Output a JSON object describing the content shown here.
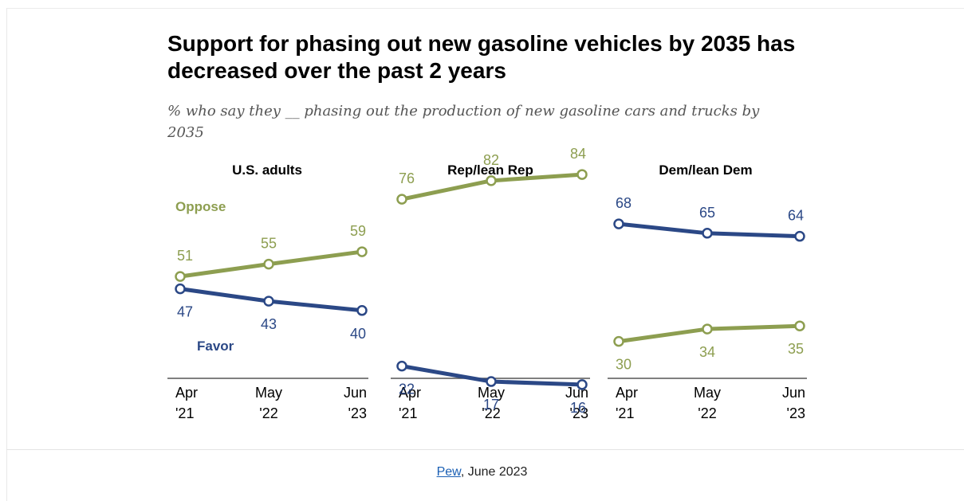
{
  "header": {
    "title": "Support for phasing out new gasoline vehicles by 2035 has decreased over the past 2 years",
    "subtitle": "% who say they __ phasing out the production of new gasoline cars and trucks by 2035"
  },
  "footer": {
    "source_link": "Pew",
    "source_rest": ", June 2023"
  },
  "colors": {
    "oppose": "#8d9e50",
    "favor": "#2b4886",
    "axis": "#555555",
    "text": "#000000"
  },
  "chart_data": {
    "type": "line",
    "x": [
      "Apr '21",
      "May '22",
      "Jun '23"
    ],
    "x_tick_lines": [
      [
        "Apr",
        "'21"
      ],
      [
        "May",
        "'22"
      ],
      [
        "Jun",
        "'23"
      ]
    ],
    "ylim": [
      0,
      100
    ],
    "grid": false,
    "panels": [
      {
        "title": "U.S. adults",
        "series": [
          {
            "name": "Oppose",
            "values": [
              51,
              55,
              59
            ],
            "color": "#8d9e50"
          },
          {
            "name": "Favor",
            "values": [
              47,
              43,
              40
            ],
            "color": "#2b4886"
          }
        ]
      },
      {
        "title": "Rep/lean Rep",
        "series": [
          {
            "values": [
              76,
              82,
              84
            ],
            "color": "#8d9e50"
          },
          {
            "values": [
              22,
              17,
              16
            ],
            "color": "#2b4886"
          }
        ]
      },
      {
        "title": "Dem/lean Dem",
        "series": [
          {
            "values": [
              68,
              65,
              64
            ],
            "color": "#2b4886"
          },
          {
            "values": [
              30,
              34,
              35
            ],
            "color": "#8d9e50"
          }
        ]
      }
    ]
  }
}
